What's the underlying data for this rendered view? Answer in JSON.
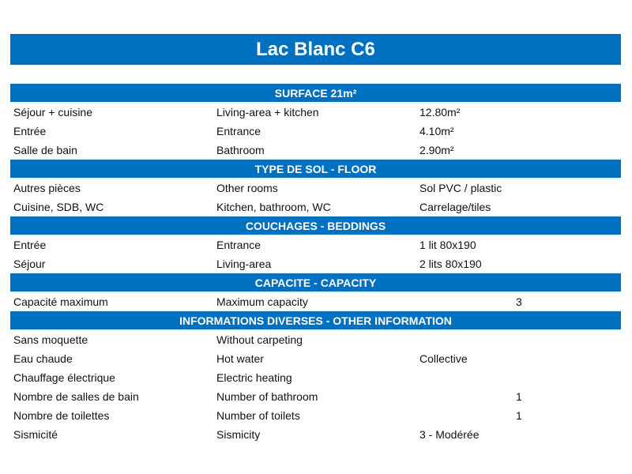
{
  "title": "Lac Blanc C6",
  "sections": [
    {
      "header": "SURFACE 21m²",
      "rows": [
        {
          "fr": "Séjour + cuisine",
          "en": "Living-area + kitchen",
          "value": "12.80m²"
        },
        {
          "fr": "Entrée",
          "en": "Entrance",
          "value": "4.10m²"
        },
        {
          "fr": "Salle de bain",
          "en": "Bathroom",
          "value": "2.90m²"
        }
      ]
    },
    {
      "header": "TYPE DE SOL - FLOOR",
      "rows": [
        {
          "fr": "Autres pièces",
          "en": "Other rooms",
          "value": "Sol PVC / plastic"
        },
        {
          "fr": "Cuisine, SDB, WC",
          "en": "Kitchen, bathroom, WC",
          "value": "Carrelage/tiles"
        }
      ]
    },
    {
      "header": "COUCHAGES - BEDDINGS",
      "rows": [
        {
          "fr": "Entrée",
          "en": "Entrance",
          "value": "1 lit 80x190"
        },
        {
          "fr": "Séjour",
          "en": "Living-area",
          "value": "2 lits 80x190"
        }
      ]
    },
    {
      "header": "CAPACITE - CAPACITY",
      "rows": [
        {
          "fr": "Capacité maximum",
          "en": "Maximum capacity",
          "number": "3"
        }
      ]
    },
    {
      "header": "INFORMATIONS DIVERSES - OTHER INFORMATION",
      "rows": [
        {
          "fr": "Sans moquette",
          "en": "Without carpeting"
        },
        {
          "fr": "Eau chaude",
          "en": "Hot water",
          "value": "Collective"
        },
        {
          "fr": "Chauffage électrique",
          "en": "Electric heating"
        },
        {
          "fr": "Nombre de salles de bain",
          "en": "Number of bathroom",
          "number": "1"
        },
        {
          "fr": "Nombre de toilettes",
          "en": "Number of toilets",
          "number": "1"
        },
        {
          "fr": "Sismicité",
          "en": "Sismicity",
          "value": "3 - Modérée"
        }
      ]
    }
  ]
}
